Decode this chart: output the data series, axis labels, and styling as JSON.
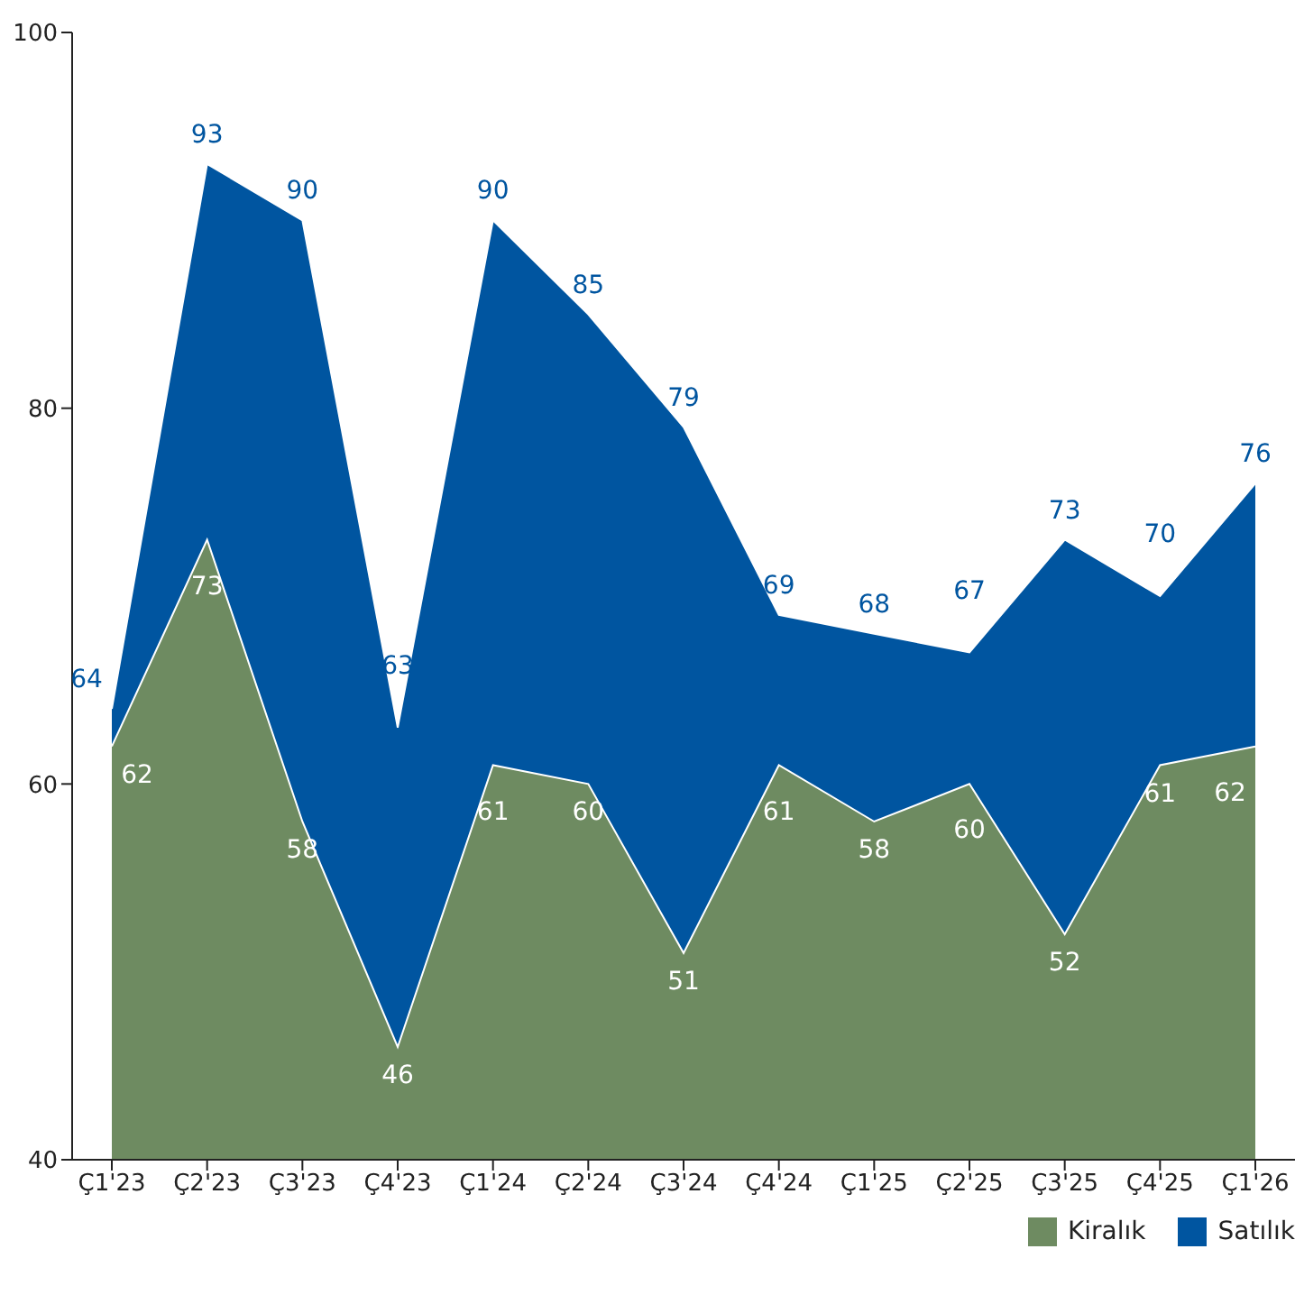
{
  "chart_data": {
    "type": "area",
    "categories": [
      "Ç1'23",
      "Ç2'23",
      "Ç3'23",
      "Ç4'23",
      "Ç1'24",
      "Ç2'24",
      "Ç3'24",
      "Ç4'24",
      "Ç1'25",
      "Ç2'25",
      "Ç3'25",
      "Ç4'25",
      "Ç1'26"
    ],
    "series": [
      {
        "name": "Kiralık",
        "color": "#6e8b61",
        "values": [
          62,
          73,
          58,
          46,
          61,
          60,
          51,
          61,
          58,
          60,
          52,
          61,
          62
        ]
      },
      {
        "name": "Satılık",
        "color": "#0055a0",
        "values": [
          64,
          93,
          90,
          63,
          90,
          85,
          79,
          69,
          68,
          67,
          73,
          70,
          76
        ]
      }
    ],
    "ylim": [
      40,
      100
    ],
    "yticks": [
      40,
      60,
      80,
      100
    ],
    "grid": false,
    "legend": "bottom right",
    "data_labels": true
  }
}
